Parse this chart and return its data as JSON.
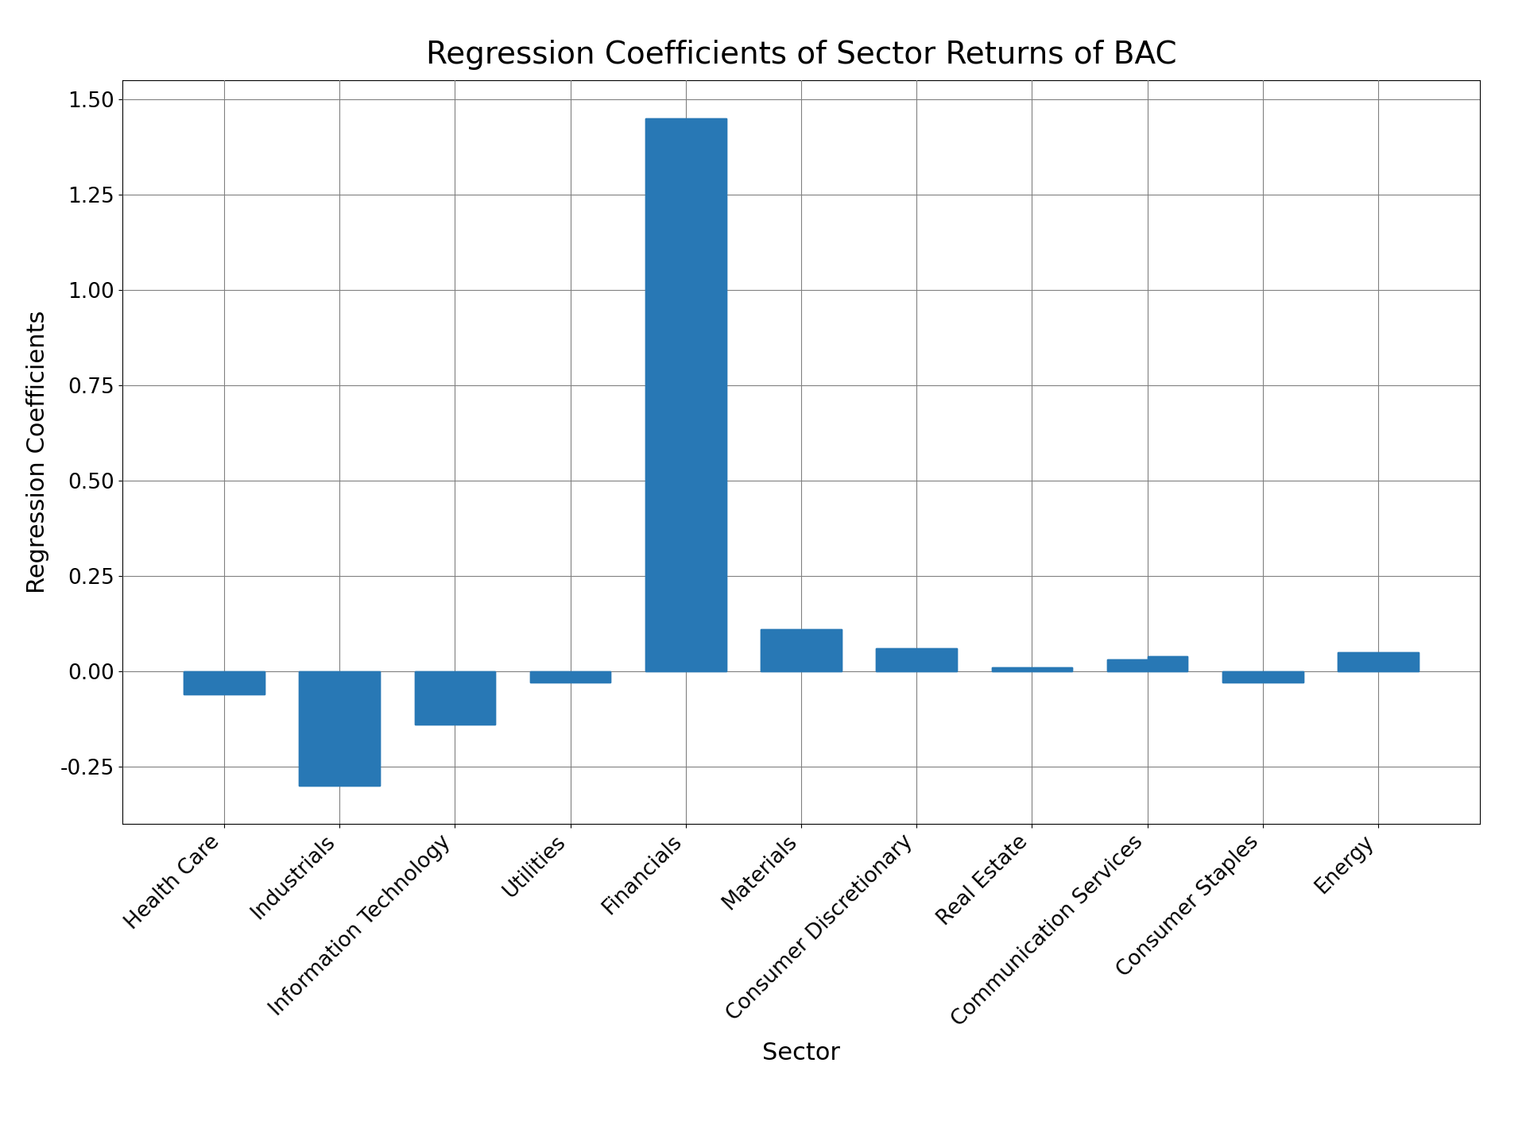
{
  "title": "Regression Coefficients of Sector Returns of BAC",
  "xlabel": "Sector",
  "ylabel": "Regression Coefficients",
  "categories": [
    "Health Care",
    "Industrials",
    "Information Technology",
    "Utilities",
    "Financials",
    "Materials",
    "Consumer Discretionary",
    "Real Estate",
    "Communication Services",
    "Consumer Staples",
    "Energy"
  ],
  "values1": [
    -0.06,
    -0.3,
    -0.14,
    -0.03,
    1.45,
    0.11,
    0.06,
    0.01,
    0.03,
    -0.03,
    0.05
  ],
  "values2": [
    -0.06,
    -0.3,
    -0.14,
    -0.03,
    1.45,
    0.11,
    0.06,
    0.01,
    0.04,
    -0.03,
    0.05
  ],
  "bar_color": "#2878b5",
  "bar_width": 0.35,
  "ylim": [
    -0.4,
    1.55
  ],
  "yticks": [
    -0.25,
    0.0,
    0.25,
    0.5,
    0.75,
    1.0,
    1.25,
    1.5
  ],
  "grid": true,
  "title_fontsize": 28,
  "label_fontsize": 22,
  "tick_fontsize": 19,
  "figsize": [
    19.2,
    14.4
  ],
  "dpi": 100
}
